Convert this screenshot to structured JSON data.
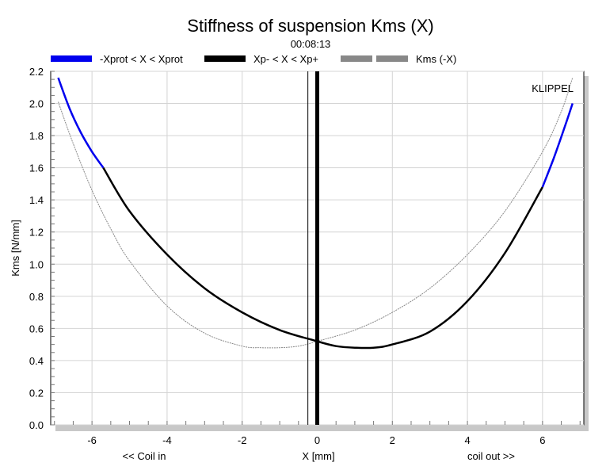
{
  "chart_data": {
    "type": "line",
    "title": "Stiffness of suspension Kms (X)",
    "subtitle": "00:08:13",
    "watermark": "KLIPPEL",
    "xlabel": "X [mm]",
    "xlabel_left": "<< Coil in",
    "xlabel_right": "coil out >>",
    "ylabel": "Kms [N/mm]",
    "xlim": [
      -7.1,
      7.1
    ],
    "ylim": [
      0.0,
      2.2
    ],
    "xticks": [
      -6,
      -4,
      -2,
      0,
      2,
      4,
      6
    ],
    "xtick_labels": [
      "-6",
      "-4",
      "-2",
      "0",
      "2",
      "4",
      "6"
    ],
    "yticks": [
      0.0,
      0.2,
      0.4,
      0.6,
      0.8,
      1.0,
      1.2,
      1.4,
      1.6,
      1.8,
      2.0,
      2.2
    ],
    "ytick_labels": [
      "0.0",
      "0.2",
      "0.4",
      "0.6",
      "0.8",
      "1.0",
      "1.2",
      "1.4",
      "1.6",
      "1.8",
      "2.0",
      "2.2"
    ],
    "grid": true,
    "legend_position": "top",
    "series": [
      {
        "name": "-Xprot < X < Xprot",
        "color": "#0000ee",
        "style": "thick",
        "x": [
          -6.9,
          -6.6,
          -6.3,
          -6.0,
          -5.7
        ],
        "y": [
          2.16,
          1.97,
          1.82,
          1.7,
          1.6
        ]
      },
      {
        "name": "Xp- < X < Xp+",
        "color": "#000000",
        "style": "thick",
        "x": [
          -5.7,
          -5.0,
          -4.0,
          -3.0,
          -2.0,
          -1.0,
          0.0,
          0.5,
          1.0,
          1.5,
          2.0,
          3.0,
          4.0,
          5.0,
          6.0
        ],
        "y": [
          1.6,
          1.33,
          1.06,
          0.85,
          0.7,
          0.59,
          0.52,
          0.49,
          0.48,
          0.48,
          0.5,
          0.58,
          0.77,
          1.07,
          1.48
        ]
      },
      {
        "name": "",
        "color": "#0000ee",
        "style": "thick",
        "x": [
          6.0,
          6.3,
          6.6,
          6.8
        ],
        "y": [
          1.48,
          1.66,
          1.86,
          2.0
        ]
      },
      {
        "name": "Kms (-X)",
        "color": "#888888",
        "style": "thin-dashed",
        "x": [
          -6.9,
          -6.5,
          -6.0,
          -5.5,
          -5.0,
          -4.0,
          -3.0,
          -2.0,
          -1.5,
          -1.0,
          -0.5,
          0.0,
          1.0,
          2.0,
          3.0,
          4.0,
          5.0,
          6.0,
          6.5,
          6.8
        ],
        "y": [
          2.01,
          1.75,
          1.46,
          1.22,
          1.02,
          0.74,
          0.57,
          0.49,
          0.48,
          0.48,
          0.49,
          0.52,
          0.59,
          0.7,
          0.85,
          1.06,
          1.33,
          1.7,
          1.95,
          2.16
        ]
      }
    ],
    "vertical_lines": [
      {
        "x": -0.25,
        "color": "#000000",
        "style": "thin"
      },
      {
        "x": 0.0,
        "color": "#000000",
        "style": "thick"
      }
    ]
  }
}
